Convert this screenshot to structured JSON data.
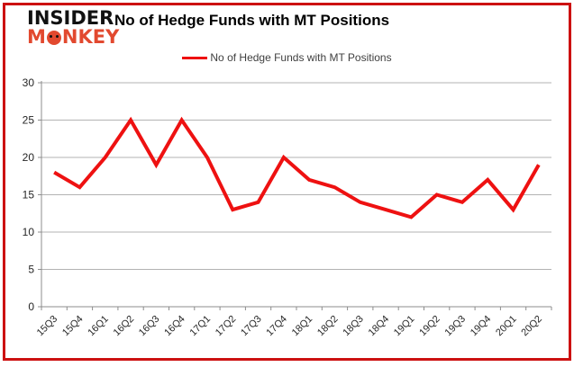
{
  "logo": {
    "line1": "INSIDER",
    "line2_pre": "M",
    "line2_post": "NKEY"
  },
  "header": {
    "title": "No of Hedge Funds with MT Positions"
  },
  "legend": {
    "label": "No of Hedge Funds with MT Positions"
  },
  "colors": {
    "series": "#ee1111",
    "frame_border": "#cc1111",
    "gridline": "#b3b3b3",
    "axis": "#8c8c8c",
    "tick_label": "#262626",
    "logo_accent": "#e2492f"
  },
  "chart_data": {
    "type": "line",
    "title": "No of Hedge Funds with MT Positions",
    "categories": [
      "15Q3",
      "15Q4",
      "16Q1",
      "16Q2",
      "16Q3",
      "16Q4",
      "17Q1",
      "17Q2",
      "17Q3",
      "17Q4",
      "18Q1",
      "18Q2",
      "18Q3",
      "18Q4",
      "19Q1",
      "19Q2",
      "19Q3",
      "19Q4",
      "20Q1",
      "20Q2"
    ],
    "series": [
      {
        "name": "No of Hedge Funds with MT Positions",
        "color": "#ee1111",
        "values": [
          18,
          16,
          20,
          25,
          19,
          25,
          20,
          13,
          14,
          20,
          17,
          16,
          14,
          13,
          12,
          15,
          14,
          17,
          13,
          19
        ]
      }
    ],
    "xlabel": "",
    "ylabel": "",
    "ylim": [
      0,
      30
    ],
    "ytick_interval": 5,
    "grid": "horizontal",
    "legend_position": "top"
  }
}
